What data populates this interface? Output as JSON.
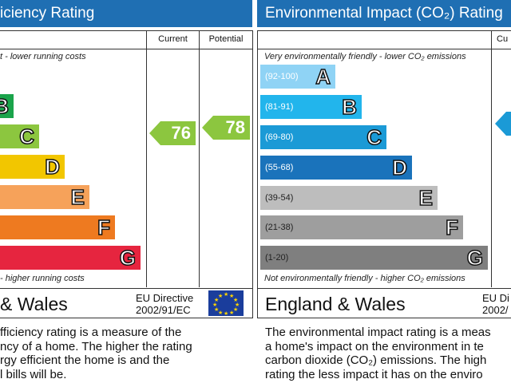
{
  "left": {
    "header": "iciency Rating",
    "col_current": "Current",
    "col_potential": "Potential",
    "top_note": "t - lower running costs",
    "bottom_note": "- higher running costs",
    "bands": [
      {
        "letter": "B",
        "color": "#1aa44b"
      },
      {
        "letter": "C",
        "color": "#8cc63f"
      },
      {
        "letter": "D",
        "color": "#f2c600"
      },
      {
        "letter": "E",
        "color": "#f6a25a"
      },
      {
        "letter": "F",
        "color": "#ee7a20"
      },
      {
        "letter": "G",
        "color": "#e6253f"
      }
    ],
    "current_value": "76",
    "current_color": "#8cc63f",
    "potential_value": "78",
    "potential_color": "#8cc63f",
    "region": "& Wales",
    "directive_line1": "EU Directive",
    "directive_line2": "2002/91/EC",
    "desc_lines": [
      "fficiency rating is a measure of the",
      "ncy of a home. The higher the rating",
      "rgy efficient the home is and the",
      "l bills will be."
    ]
  },
  "right": {
    "header": "Environmental Impact (CO₂) Rating",
    "col_current": "Cu",
    "top_note": "Very environmentally friendly - lower CO₂ emissions",
    "bottom_note": "Not environmentally friendly - higher CO₂ emissions",
    "bands": [
      {
        "range": "(92-100)",
        "letter": "A",
        "color": "#8fd3f5"
      },
      {
        "range": "(81-91)",
        "letter": "B",
        "color": "#22b5ec"
      },
      {
        "range": "(69-80)",
        "letter": "C",
        "color": "#1b9ad6"
      },
      {
        "range": "(55-68)",
        "letter": "D",
        "color": "#1a73bb"
      },
      {
        "range": "(39-54)",
        "letter": "E",
        "color": "#bdbdbd"
      },
      {
        "range": "(21-38)",
        "letter": "F",
        "color": "#9e9e9e"
      },
      {
        "range": "(1-20)",
        "letter": "G",
        "color": "#7f7f7f"
      }
    ],
    "current_arrow_color": "#1b9ad6",
    "region": "England & Wales",
    "directive_line1": "EU Di",
    "directive_line2": "2002/",
    "desc_lines": [
      "The environmental impact rating is a meas",
      "a home's impact on the environment in te",
      "carbon dioxide (CO₂) emissions. The high",
      "rating the less impact it has on the enviro"
    ]
  }
}
